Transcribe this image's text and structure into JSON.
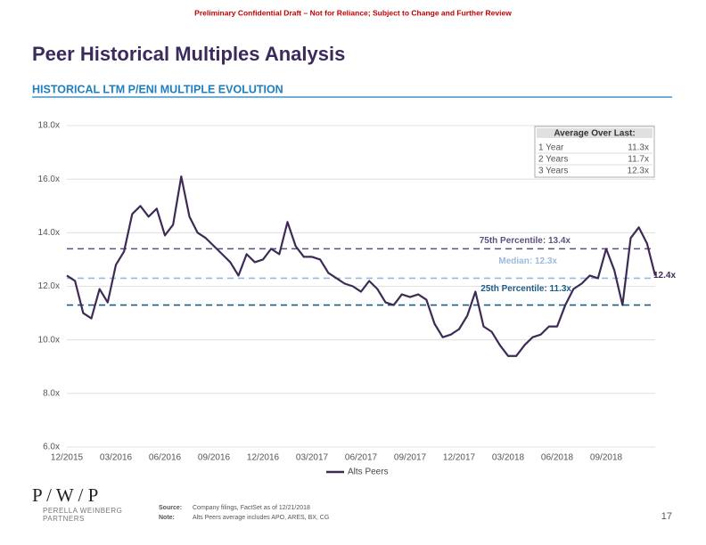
{
  "header": {
    "disclaimer": "Preliminary Confidential Draft – Not for Reliance; Subject to Change and Further Review",
    "title": "Peer Historical Multiples Analysis",
    "subtitle": "HISTORICAL LTM P/ENI MULTIPLE EVOLUTION"
  },
  "chart_data": {
    "type": "line",
    "categories": [
      "12/2015",
      null,
      null,
      null,
      null,
      null,
      "03/2016",
      null,
      null,
      null,
      null,
      null,
      "06/2016",
      null,
      null,
      null,
      null,
      null,
      "09/2016",
      null,
      null,
      null,
      null,
      null,
      "12/2016",
      null,
      null,
      null,
      null,
      null,
      "03/2017",
      null,
      null,
      null,
      null,
      null,
      "06/2017",
      null,
      null,
      null,
      null,
      null,
      "09/2017",
      null,
      null,
      null,
      null,
      null,
      "12/2017",
      null,
      null,
      null,
      null,
      null,
      "03/2018",
      null,
      null,
      null,
      null,
      null,
      "06/2018",
      null,
      null,
      null,
      null,
      null,
      "09/2018",
      null,
      null,
      null,
      null,
      null,
      null
    ],
    "series": [
      {
        "name": "Alts Peers",
        "color": "#3d2b56",
        "values": [
          12.4,
          12.2,
          11.0,
          10.8,
          11.9,
          11.4,
          12.8,
          13.3,
          14.7,
          15.0,
          14.6,
          14.9,
          13.9,
          14.3,
          16.1,
          14.6,
          14.0,
          13.8,
          13.5,
          13.2,
          12.9,
          12.4,
          13.2,
          12.9,
          13.0,
          13.4,
          13.2,
          14.4,
          13.5,
          13.1,
          13.1,
          13.0,
          12.5,
          12.3,
          12.1,
          12.0,
          11.8,
          12.2,
          11.9,
          11.4,
          11.3,
          11.7,
          11.6,
          11.7,
          11.5,
          10.6,
          10.1,
          10.2,
          10.4,
          10.9,
          11.8,
          10.5,
          10.3,
          9.8,
          9.4,
          9.4,
          9.8,
          10.1,
          10.2,
          10.5,
          10.5,
          11.3,
          11.9,
          12.1,
          12.4,
          12.3,
          13.4,
          12.6,
          11.3,
          13.8,
          14.2,
          13.6,
          12.4
        ]
      }
    ],
    "ylim": [
      6,
      18
    ],
    "yticks": [
      {
        "value": 6,
        "label": "6.0x"
      },
      {
        "value": 8,
        "label": "8.0x"
      },
      {
        "value": 10,
        "label": "10.0x"
      },
      {
        "value": 12,
        "label": "12.0x"
      },
      {
        "value": 14,
        "label": "14.0x"
      },
      {
        "value": 16,
        "label": "16.0x"
      },
      {
        "value": 18,
        "label": "18.0x"
      }
    ],
    "grid": true,
    "reference_lines": [
      {
        "label": "75th Percentile: 13.4x",
        "value": 13.4,
        "color": "#5e507e"
      },
      {
        "label": "Median: 12.3x",
        "value": 12.3,
        "color": "#9db9da"
      },
      {
        "label": "25th Percentile: 11.3x",
        "value": 11.3,
        "color": "#1b5c85"
      }
    ],
    "end_label": {
      "label": "12.4x",
      "value": 12.4
    },
    "legend": "bottom"
  },
  "average_table": {
    "title": "Average Over Last:",
    "rows": [
      [
        "1 Year",
        "11.3x"
      ],
      [
        "2 Years",
        "11.7x"
      ],
      [
        "3 Years",
        "12.3x"
      ]
    ]
  },
  "footer": {
    "logo": "P / W / P",
    "firm_line1": "PERELLA WEINBERG",
    "firm_line2": "PARTNERS",
    "source_label": "Source:",
    "source": "Company filings, FactSet as of 12/21/2018",
    "note_label": "Note:",
    "note": "Alts Peers average includes APO, ARES, BX, CG",
    "page": "17"
  }
}
